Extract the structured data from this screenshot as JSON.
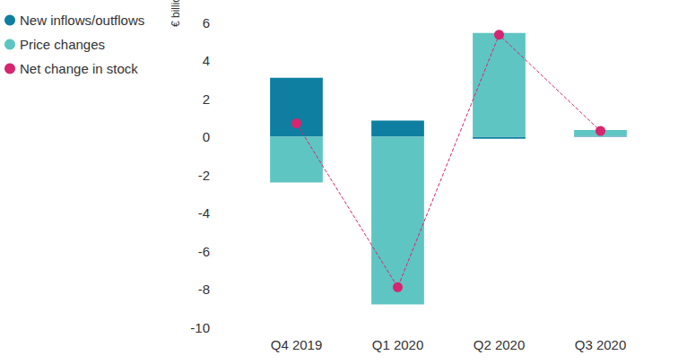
{
  "chart_data": {
    "type": "bar",
    "y_label": "€ billion",
    "categories": [
      "Q4 2019",
      "Q1 2020",
      "Q2 2020",
      "Q3 2020"
    ],
    "series": [
      {
        "name": "New inflows/outflows",
        "type": "bar",
        "color": "#0e7fa0",
        "values": [
          3.1,
          0.85,
          -0.1,
          0.05
        ]
      },
      {
        "name": "Price changes",
        "type": "bar",
        "color": "#5ec5c2",
        "values": [
          -2.4,
          -8.8,
          5.45,
          0.3
        ]
      },
      {
        "name": "Net change in stock",
        "type": "line",
        "color": "#d6266f",
        "marker": "circle",
        "line_style": "dashed",
        "values": [
          0.7,
          -7.9,
          5.35,
          0.3
        ]
      }
    ],
    "stacked": true,
    "ylim": [
      -10,
      6
    ],
    "yticks": [
      -10,
      -8,
      -6,
      -4,
      -2,
      0,
      2,
      4,
      6
    ],
    "grid": false,
    "legend": "upper left"
  }
}
